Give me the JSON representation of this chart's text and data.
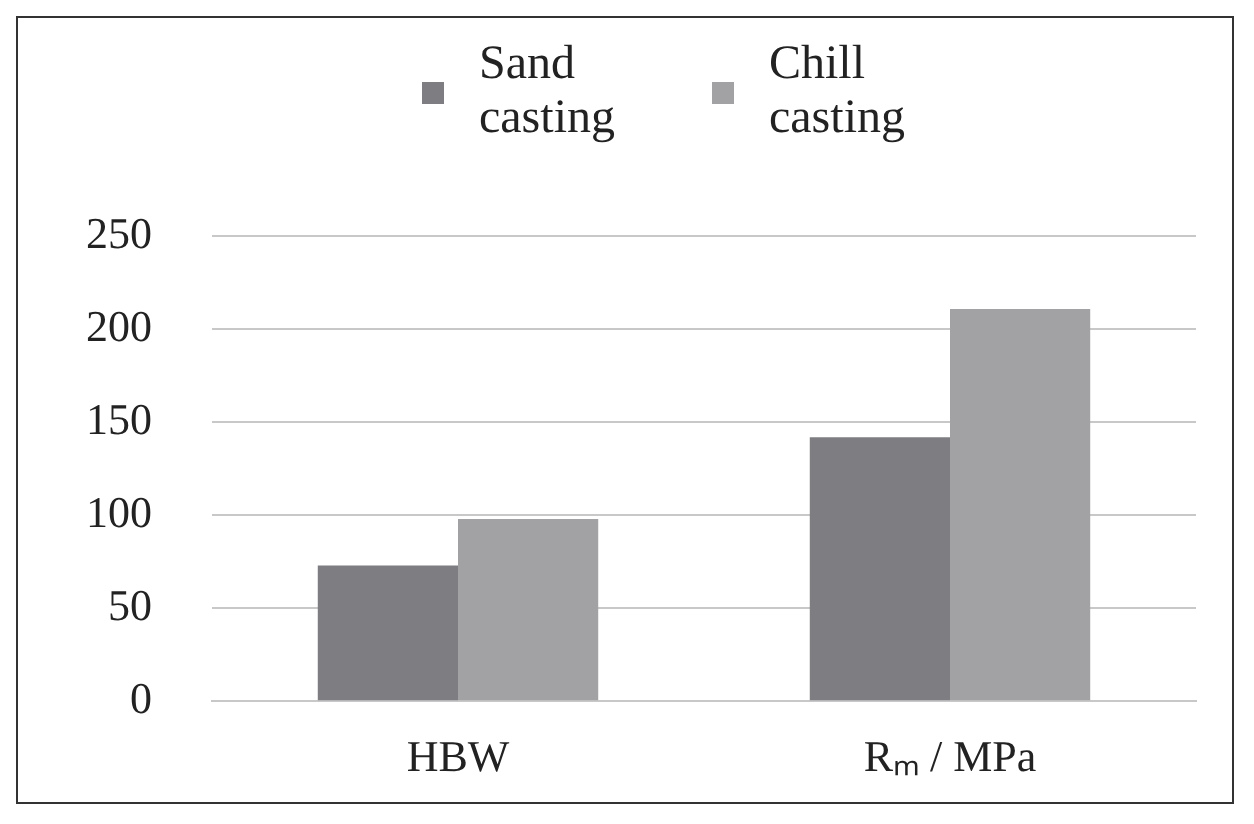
{
  "chart_data": {
    "type": "bar",
    "categories": [
      "HBW",
      "Rₘ / MPa"
    ],
    "series": [
      {
        "name": "Sand casting",
        "color": "#7e7e82",
        "values": [
          73,
          142
        ]
      },
      {
        "name": "Chill casting",
        "color": "#a2a2a5",
        "values": [
          98,
          211
        ]
      }
    ],
    "ylim": [
      0,
      250
    ],
    "yticks": [
      0,
      50,
      100,
      150,
      200,
      250
    ],
    "grid": "y",
    "legend": "top"
  }
}
